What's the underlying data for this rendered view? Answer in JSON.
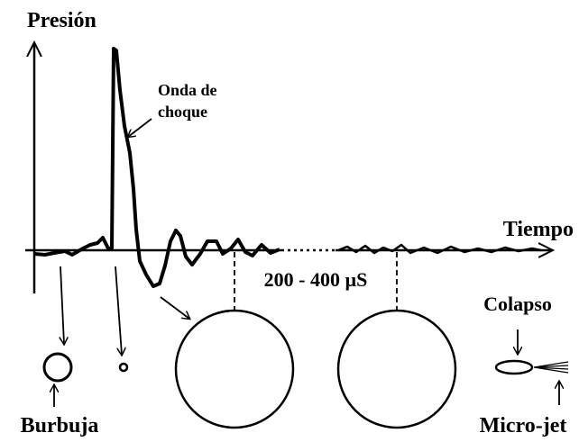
{
  "labels": {
    "y_axis": "Presión",
    "x_axis": "Tiempo",
    "shock_wave": [
      "Onda de",
      "choque"
    ],
    "interval": "200 - 400 µS",
    "collapse": "Colapso",
    "bubble": "Burbuja",
    "microjet": "Micro-jet"
  }
}
